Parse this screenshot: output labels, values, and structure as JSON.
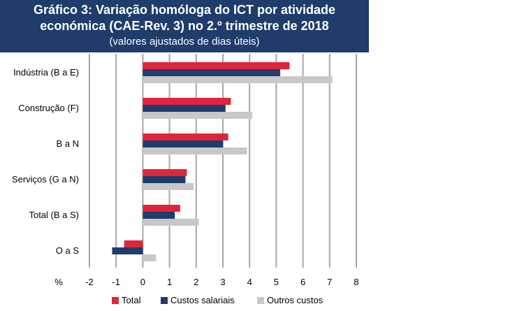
{
  "header": {
    "title_line1": "Gráfico 3: Variação homóloga do ICT por atividade",
    "title_line2": "económica (CAE-Rev. 3) no 2.º trimestre de 2018",
    "subtitle": "(valores ajustados de dias úteis)"
  },
  "colors": {
    "title_bg": "#1f3c6b",
    "total": "#e0243a",
    "custos_salariais": "#1f3c6b",
    "outros_custos": "#c8c8c8",
    "grid": "#a6a6a6"
  },
  "chart_data": {
    "type": "bar",
    "orientation": "horizontal",
    "title": "Gráfico 3: Variação homóloga do ICT por atividade económica (CAE-Rev. 3) no 2.º trimestre de 2018",
    "subtitle": "(valores ajustados de dias úteis)",
    "xlabel": "%",
    "categories": [
      "Indústria (B a E)",
      "Construção (F)",
      "B a N",
      "Serviços (G a N)",
      "Total (B a S)",
      "O a S"
    ],
    "series": [
      {
        "name": "Total",
        "values": [
          5.5,
          3.3,
          3.2,
          1.65,
          1.4,
          -0.7
        ]
      },
      {
        "name": "Custos salariais",
        "values": [
          5.15,
          3.1,
          3.0,
          1.6,
          1.2,
          -1.15
        ]
      },
      {
        "name": "Outros custos",
        "values": [
          7.1,
          4.1,
          3.9,
          1.9,
          2.1,
          0.5
        ]
      }
    ],
    "xlim": [
      -2,
      8
    ],
    "xticks": [
      -2,
      -1,
      0,
      1,
      2,
      3,
      4,
      5,
      6,
      7,
      8
    ],
    "xtick_labels": [
      "-2",
      "-1",
      "0",
      "1",
      "2",
      "3",
      "4",
      "5",
      "6",
      "7",
      "8"
    ],
    "grid": true,
    "legend_position": "bottom"
  }
}
